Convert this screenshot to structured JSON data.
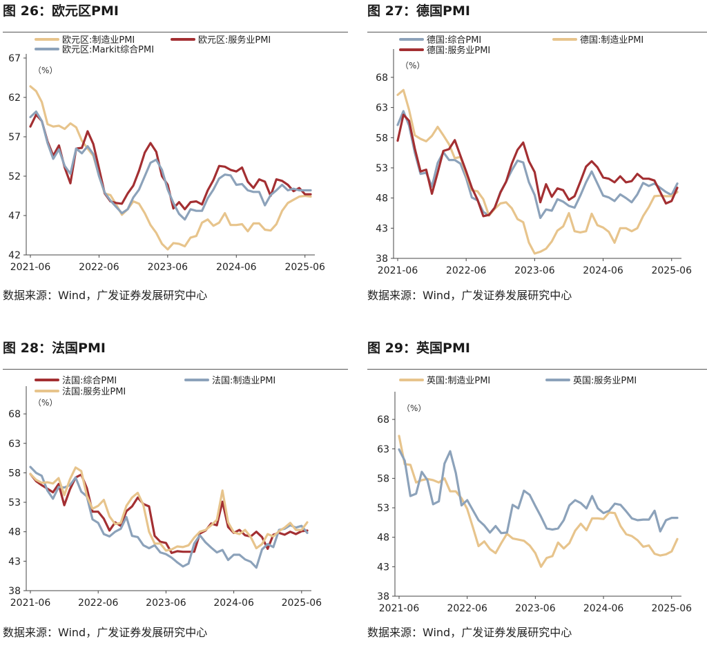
{
  "charts": [
    {
      "title": "图 26：欧元区PMI",
      "source": "数据来源：Wind，广发证券发展研究中心",
      "chart_data": {
        "type": "line",
        "unit_label": "（%）",
        "ylim": [
          42,
          67
        ],
        "yticks": [
          42,
          47,
          52,
          57,
          62,
          67
        ],
        "xticks": [
          "2021-06",
          "2022-06",
          "2023-06",
          "2024-06",
          "2025-06"
        ],
        "legend_position": "top",
        "series": [
          {
            "name": "欧元区:制造业PMI",
            "color": "#e7c48c",
            "values": [
              63.4,
              62.8,
              61.4,
              58.6,
              58.3,
              58.4,
              58.0,
              58.7,
              58.2,
              56.5,
              55.5,
              54.6,
              52.1,
              49.8,
              49.6,
              48.4,
              47.1,
              47.8,
              48.8,
              48.5,
              47.3,
              45.8,
              44.8,
              43.4,
              42.7,
              43.5,
              43.4,
              43.1,
              44.2,
              44.4,
              46.1,
              46.5,
              45.7,
              46.1,
              47.3,
              45.8,
              45.8,
              45.9,
              45.0,
              46.0,
              46.0,
              45.2,
              45.1,
              45.9,
              47.6,
              48.6,
              49.0,
              49.4,
              49.5,
              49.4
            ]
          },
          {
            "name": "欧元区:服务业PMI",
            "color": "#a32f32",
            "values": [
              58.3,
              59.8,
              59.0,
              56.4,
              54.6,
              55.9,
              53.1,
              51.1,
              55.5,
              55.6,
              57.7,
              56.1,
              53.0,
              49.8,
              48.8,
              48.6,
              48.5,
              49.8,
              50.8,
              52.7,
              55.0,
              56.2,
              55.1,
              52.0,
              50.9,
              47.9,
              48.7,
              47.8,
              48.7,
              48.8,
              48.4,
              50.2,
              51.5,
              53.3,
              53.2,
              52.8,
              52.6,
              53.1,
              51.3,
              50.5,
              51.6,
              51.3,
              49.5,
              51.6,
              51.4,
              50.9,
              50.1,
              50.5,
              49.7,
              49.7
            ]
          },
          {
            "name": "欧元区:Markit综合PMI",
            "color": "#8ca2ba",
            "values": [
              59.5,
              60.2,
              59.0,
              56.2,
              54.2,
              55.4,
              53.3,
              52.3,
              55.5,
              54.9,
              55.8,
              54.8,
              52.0,
              49.9,
              48.9,
              48.1,
              47.3,
              47.8,
              49.3,
              50.3,
              52.0,
              53.7,
              54.1,
              52.8,
              50.3,
              48.6,
              47.2,
              46.5,
              47.8,
              47.6,
              47.6,
              49.2,
              50.3,
              51.7,
              52.2,
              52.1,
              50.9,
              51.0,
              50.2,
              50.0,
              50.0,
              48.3,
              49.6,
              50.2,
              50.9,
              50.2,
              50.4,
              50.2,
              50.2,
              50.2
            ]
          }
        ]
      }
    },
    {
      "title": "图 27：德国PMI",
      "source": "数据来源：Wind，广发证券发展研究中心",
      "chart_data": {
        "type": "line",
        "unit_label": "（%）",
        "ylim": [
          38,
          72
        ],
        "yticks": [
          38,
          43,
          48,
          53,
          58,
          63,
          68
        ],
        "xticks": [
          "2021-06",
          "2022-06",
          "2023-06",
          "2024-06",
          "2025-06"
        ],
        "legend_position": "top",
        "series": [
          {
            "name": "德国:综合PMI",
            "color": "#8ca2ba",
            "values": [
              60.1,
              62.4,
              60.0,
              55.5,
              52.0,
              52.2,
              49.9,
              53.8,
              55.6,
              54.3,
              54.3,
              53.7,
              51.3,
              48.1,
              47.6,
              45.7,
              45.1,
              46.3,
              49.0,
              50.7,
              52.6,
              54.2,
              53.9,
              50.6,
              48.5,
              44.7,
              46.1,
              45.9,
              47.8,
              47.4,
              46.7,
              46.4,
              48.4,
              50.6,
              52.4,
              50.4,
              48.4,
              48.1,
              47.5,
              48.6,
              48.0,
              47.3,
              48.6,
              50.5,
              50.0,
              50.4,
              49.7,
              49.0,
              48.5,
              50.4
            ]
          },
          {
            "name": "德国:制造业PMI",
            "color": "#e7c48c",
            "values": [
              65.1,
              65.9,
              62.6,
              58.4,
              57.8,
              57.4,
              58.3,
              59.8,
              58.4,
              56.9,
              54.6,
              54.8,
              52.0,
              49.3,
              49.1,
              47.8,
              45.1,
              46.2,
              47.1,
              47.3,
              46.3,
              44.5,
              44.0,
              40.6,
              38.8,
              39.1,
              39.6,
              40.8,
              42.6,
              43.3,
              45.5,
              42.5,
              42.3,
              42.5,
              45.4,
              43.5,
              43.1,
              42.4,
              40.6,
              43.0,
              43.0,
              42.5,
              43.0,
              45.0,
              46.5,
              48.3,
              48.4,
              48.3,
              48.3,
              49.0
            ]
          },
          {
            "name": "德国:服务业PMI",
            "color": "#a32f32",
            "values": [
              57.5,
              61.8,
              60.8,
              56.2,
              52.4,
              52.7,
              48.7,
              52.2,
              55.8,
              56.1,
              57.6,
              55.0,
              52.4,
              49.7,
              47.7,
              45.0,
              45.2,
              46.4,
              48.9,
              50.7,
              53.7,
              56.0,
              57.2,
              54.1,
              52.3,
              47.3,
              50.3,
              48.2,
              49.6,
              49.3,
              47.7,
              48.3,
              50.7,
              53.2,
              54.1,
              53.1,
              51.4,
              51.2,
              50.6,
              51.6,
              50.6,
              50.8,
              52.0,
              51.2,
              51.2,
              50.9,
              49.0,
              47.1,
              47.5,
              49.7
            ]
          }
        ]
      }
    },
    {
      "title": "图 28：法国PMI",
      "source": "数据来源：Wind，广发证券发展研究中心",
      "chart_data": {
        "type": "line",
        "unit_label": "（%）",
        "ylim": [
          38,
          72
        ],
        "yticks": [
          38,
          43,
          48,
          53,
          58,
          63,
          68
        ],
        "xticks": [
          "2021-06",
          "2022-06",
          "2023-06",
          "2024-06",
          "2025-06"
        ],
        "legend_position": "top",
        "series": [
          {
            "name": "法国:综合PMI",
            "color": "#a32f32",
            "values": [
              57.8,
              56.6,
              55.9,
              55.3,
              54.7,
              56.1,
              52.5,
              55.2,
              57.2,
              57.7,
              55.4,
              51.4,
              51.4,
              50.2,
              48.2,
              49.6,
              49.0,
              51.5,
              52.3,
              53.8,
              52.7,
              52.3,
              47.3,
              46.3,
              46.1,
              44.4,
              44.7,
              44.6,
              44.6,
              44.6,
              47.7,
              48.2,
              49.4,
              49.1,
              53.1,
              48.8,
              47.8,
              48.3,
              47.4,
              47.2,
              48.0,
              47.1,
              45.1,
              47.5,
              47.8,
              47.5,
              48.0,
              47.6,
              48.1,
              48.2
            ]
          },
          {
            "name": "法国:制造业PMI",
            "color": "#8ca2ba",
            "values": [
              59.0,
              58.0,
              57.5,
              55.0,
              53.6,
              55.6,
              55.5,
              55.9,
              57.2,
              54.8,
              54.0,
              50.1,
              49.5,
              47.6,
              47.2,
              48.0,
              48.5,
              50.5,
              47.3,
              47.1,
              45.7,
              45.2,
              45.7,
              44.5,
              44.2,
              43.6,
              42.8,
              42.1,
              42.6,
              46.0,
              47.4,
              46.2,
              45.3,
              44.5,
              44.9,
              43.2,
              44.1,
              44.1,
              43.3,
              42.9,
              41.9,
              45.0,
              45.9,
              45.4,
              48.3,
              48.5,
              49.1,
              48.7,
              49.0,
              47.8
            ]
          },
          {
            "name": "法国:服务业PMI",
            "color": "#e7c48c",
            "values": [
              57.8,
              56.8,
              56.3,
              56.4,
              56.2,
              57.1,
              54.2,
              56.9,
              58.9,
              58.3,
              54.1,
              51.9,
              52.4,
              53.4,
              50.6,
              49.3,
              49.5,
              52.4,
              53.8,
              54.6,
              52.5,
              48.0,
              46.0,
              46.0,
              44.8,
              45.0,
              45.5,
              45.4,
              45.7,
              47.0,
              48.0,
              48.3,
              49.1,
              50.0,
              55.0,
              49.6,
              47.9,
              47.6,
              48.3,
              47.1,
              45.2,
              45.9,
              47.6,
              47.2,
              48.1,
              48.7,
              49.5,
              48.3,
              48.3,
              49.6
            ]
          }
        ]
      }
    },
    {
      "title": "图 29：英国PMI",
      "source": "数据来源：Wind，广发证券发展研究中心",
      "chart_data": {
        "type": "line",
        "unit_label": "（%）",
        "ylim": [
          38,
          72
        ],
        "yticks": [
          38,
          43,
          48,
          53,
          58,
          63,
          68
        ],
        "xticks": [
          "2021-06",
          "2022-06",
          "2023-06",
          "2024-06",
          "2025-06"
        ],
        "legend_position": "top",
        "series": [
          {
            "name": "英国:制造业PMI",
            "color": "#e7c48c",
            "values": [
              65.2,
              60.4,
              60.3,
              57.3,
              57.7,
              57.9,
              57.7,
              57.3,
              58.0,
              55.8,
              55.8,
              54.6,
              52.8,
              49.7,
              46.5,
              47.3,
              46.0,
              45.3,
              47.0,
              48.6,
              47.8,
              47.6,
              47.4,
              46.6,
              45.3,
              43.0,
              44.5,
              44.8,
              47.1,
              46.1,
              47.0,
              49.1,
              50.3,
              49.2,
              51.2,
              51.2,
              51.1,
              52.2,
              52.1,
              49.9,
              48.5,
              48.2,
              47.5,
              46.4,
              46.6,
              45.2,
              44.9,
              45.1,
              45.6,
              47.7
            ]
          },
          {
            "name": "英国:服务业PMI",
            "color": "#8ca2ba",
            "values": [
              62.9,
              61.0,
              55.0,
              55.4,
              59.1,
              57.7,
              53.6,
              54.1,
              60.5,
              62.6,
              58.9,
              53.4,
              54.3,
              52.6,
              50.9,
              50.0,
              48.8,
              49.9,
              48.7,
              48.8,
              53.5,
              52.9,
              55.9,
              55.2,
              53.3,
              51.5,
              49.5,
              49.3,
              49.5,
              50.9,
              53.4,
              54.3,
              53.8,
              52.9,
              55.0,
              52.9,
              52.1,
              52.5,
              53.7,
              53.5,
              52.4,
              51.2,
              50.9,
              51.0,
              51.0,
              52.5,
              49.0,
              50.9,
              51.3,
              51.3
            ]
          }
        ]
      }
    }
  ]
}
